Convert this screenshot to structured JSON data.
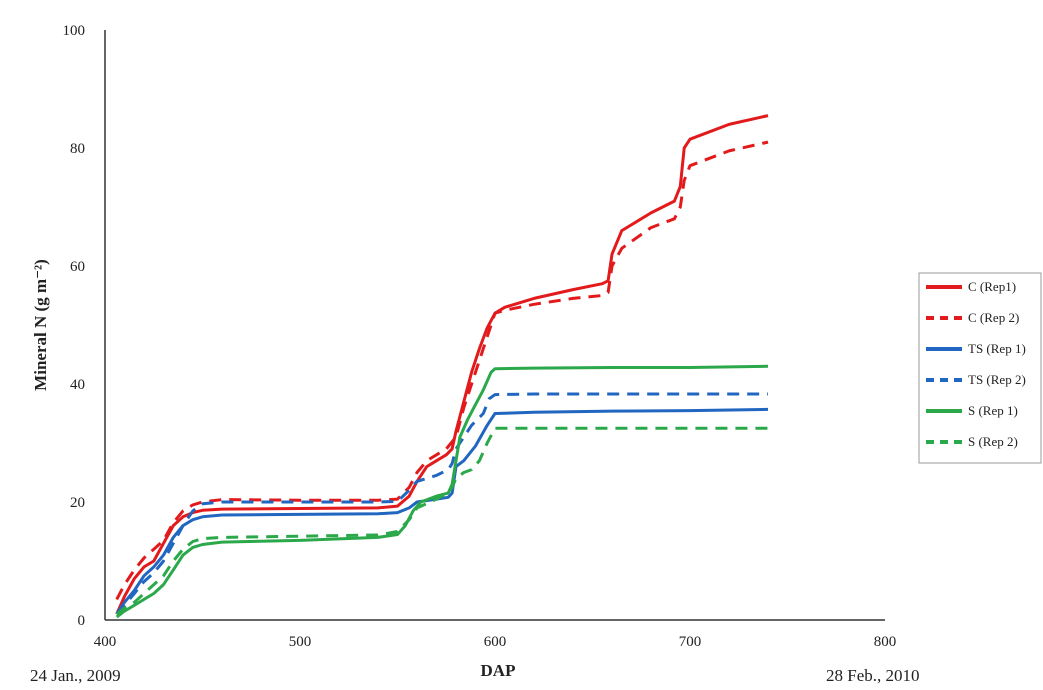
{
  "chart_data": {
    "type": "line",
    "title": "",
    "xlabel": "DAP",
    "ylabel": "Mineral N (g m⁻²)",
    "xlim": [
      400,
      800
    ],
    "ylim": [
      0,
      100
    ],
    "x_ticks": [
      400,
      500,
      600,
      700,
      800
    ],
    "y_ticks": [
      0,
      20,
      40,
      60,
      80,
      100
    ],
    "date_labels": {
      "start": "24 Jan., 2009",
      "end": "28 Feb., 2010"
    },
    "grid": false,
    "legend_position": "right",
    "series": [
      {
        "name": "C (Rep1)",
        "color": "#e31a1c",
        "dash": "solid",
        "points": [
          [
            406,
            1
          ],
          [
            410,
            4
          ],
          [
            415,
            7
          ],
          [
            420,
            9
          ],
          [
            425,
            10
          ],
          [
            430,
            13
          ],
          [
            435,
            16
          ],
          [
            440,
            17.5
          ],
          [
            445,
            18.2
          ],
          [
            450,
            18.6
          ],
          [
            460,
            18.8
          ],
          [
            500,
            18.9
          ],
          [
            540,
            19
          ],
          [
            550,
            19.3
          ],
          [
            556,
            21
          ],
          [
            560,
            23.5
          ],
          [
            565,
            26
          ],
          [
            570,
            27
          ],
          [
            575,
            28
          ],
          [
            578,
            29
          ],
          [
            580,
            32
          ],
          [
            584,
            37
          ],
          [
            588,
            42
          ],
          [
            592,
            46
          ],
          [
            596,
            49.5
          ],
          [
            600,
            52
          ],
          [
            605,
            53
          ],
          [
            620,
            54.5
          ],
          [
            640,
            56
          ],
          [
            655,
            57
          ],
          [
            658,
            57.5
          ],
          [
            660,
            62
          ],
          [
            665,
            66
          ],
          [
            680,
            69
          ],
          [
            692,
            71
          ],
          [
            695,
            73.5
          ],
          [
            697,
            80
          ],
          [
            700,
            81.5
          ],
          [
            720,
            84
          ],
          [
            740,
            85.5
          ]
        ]
      },
      {
        "name": "C (Rep 2)",
        "color": "#e31a1c",
        "dash": "dashed",
        "points": [
          [
            406,
            3.5
          ],
          [
            410,
            6
          ],
          [
            415,
            8.5
          ],
          [
            420,
            10.5
          ],
          [
            425,
            12
          ],
          [
            430,
            13.5
          ],
          [
            435,
            16.5
          ],
          [
            440,
            18.5
          ],
          [
            445,
            19.5
          ],
          [
            450,
            20
          ],
          [
            460,
            20.4
          ],
          [
            500,
            20.3
          ],
          [
            540,
            20.3
          ],
          [
            550,
            20.5
          ],
          [
            556,
            22.5
          ],
          [
            560,
            25
          ],
          [
            565,
            27
          ],
          [
            570,
            28
          ],
          [
            575,
            29
          ],
          [
            580,
            31
          ],
          [
            584,
            36
          ],
          [
            588,
            40
          ],
          [
            592,
            44
          ],
          [
            596,
            48
          ],
          [
            600,
            52
          ],
          [
            605,
            52.5
          ],
          [
            620,
            53.5
          ],
          [
            640,
            54.5
          ],
          [
            655,
            55
          ],
          [
            658,
            55.5
          ],
          [
            660,
            60
          ],
          [
            665,
            63
          ],
          [
            680,
            66.5
          ],
          [
            692,
            68
          ],
          [
            695,
            70
          ],
          [
            697,
            74.5
          ],
          [
            700,
            77
          ],
          [
            720,
            79.5
          ],
          [
            740,
            81
          ]
        ]
      },
      {
        "name": "TS (Rep 1)",
        "color": "#2166c0",
        "dash": "solid",
        "points": [
          [
            406,
            1
          ],
          [
            410,
            3
          ],
          [
            415,
            5
          ],
          [
            420,
            7.5
          ],
          [
            425,
            9
          ],
          [
            430,
            11
          ],
          [
            435,
            14
          ],
          [
            440,
            16
          ],
          [
            445,
            17
          ],
          [
            450,
            17.5
          ],
          [
            460,
            17.8
          ],
          [
            500,
            17.9
          ],
          [
            540,
            18
          ],
          [
            550,
            18.2
          ],
          [
            556,
            19
          ],
          [
            560,
            20
          ],
          [
            570,
            20.5
          ],
          [
            576,
            20.8
          ],
          [
            578,
            21.5
          ],
          [
            580,
            26
          ],
          [
            584,
            27
          ],
          [
            590,
            29.5
          ],
          [
            596,
            33
          ],
          [
            600,
            35
          ],
          [
            620,
            35.2
          ],
          [
            660,
            35.4
          ],
          [
            700,
            35.5
          ],
          [
            740,
            35.7
          ]
        ]
      },
      {
        "name": "TS (Rep 2)",
        "color": "#2166c0",
        "dash": "dashed",
        "points": [
          [
            406,
            1
          ],
          [
            410,
            2.5
          ],
          [
            415,
            4.5
          ],
          [
            420,
            6.5
          ],
          [
            425,
            8
          ],
          [
            430,
            10
          ],
          [
            435,
            13
          ],
          [
            440,
            16
          ],
          [
            445,
            18.5
          ],
          [
            450,
            19.7
          ],
          [
            460,
            20
          ],
          [
            500,
            20
          ],
          [
            540,
            20
          ],
          [
            550,
            20.1
          ],
          [
            556,
            22
          ],
          [
            560,
            23.5
          ],
          [
            570,
            24.5
          ],
          [
            576,
            25.5
          ],
          [
            578,
            26.5
          ],
          [
            580,
            29
          ],
          [
            584,
            31
          ],
          [
            588,
            33
          ],
          [
            594,
            35
          ],
          [
            597,
            37.5
          ],
          [
            600,
            38.2
          ],
          [
            620,
            38.3
          ],
          [
            660,
            38.3
          ],
          [
            700,
            38.3
          ],
          [
            740,
            38.3
          ]
        ]
      },
      {
        "name": "S (Rep 1)",
        "color": "#2aa84a",
        "dash": "solid",
        "points": [
          [
            406,
            0.5
          ],
          [
            410,
            1.5
          ],
          [
            415,
            2.5
          ],
          [
            420,
            3.5
          ],
          [
            425,
            4.5
          ],
          [
            430,
            6
          ],
          [
            435,
            8.5
          ],
          [
            440,
            11
          ],
          [
            445,
            12.3
          ],
          [
            450,
            12.8
          ],
          [
            460,
            13.2
          ],
          [
            500,
            13.5
          ],
          [
            540,
            14
          ],
          [
            550,
            14.5
          ],
          [
            554,
            16
          ],
          [
            558,
            18.5
          ],
          [
            562,
            20
          ],
          [
            570,
            21
          ],
          [
            576,
            21.5
          ],
          [
            578,
            23
          ],
          [
            580,
            27
          ],
          [
            582,
            31
          ],
          [
            586,
            34
          ],
          [
            590,
            36.5
          ],
          [
            594,
            39
          ],
          [
            598,
            42
          ],
          [
            600,
            42.6
          ],
          [
            620,
            42.7
          ],
          [
            660,
            42.8
          ],
          [
            700,
            42.8
          ],
          [
            740,
            43
          ]
        ]
      },
      {
        "name": "S (Rep 2)",
        "color": "#2aa84a",
        "dash": "dashed",
        "points": [
          [
            406,
            1
          ],
          [
            410,
            2
          ],
          [
            415,
            3
          ],
          [
            420,
            4.5
          ],
          [
            425,
            6
          ],
          [
            430,
            7.5
          ],
          [
            435,
            10
          ],
          [
            440,
            12
          ],
          [
            445,
            13.3
          ],
          [
            450,
            13.8
          ],
          [
            460,
            14
          ],
          [
            500,
            14.2
          ],
          [
            540,
            14.4
          ],
          [
            550,
            15
          ],
          [
            556,
            17
          ],
          [
            560,
            19
          ],
          [
            570,
            20.5
          ],
          [
            576,
            21.5
          ],
          [
            578,
            22.5
          ],
          [
            580,
            24
          ],
          [
            584,
            25
          ],
          [
            588,
            25.5
          ],
          [
            592,
            27
          ],
          [
            596,
            30
          ],
          [
            600,
            32.5
          ],
          [
            620,
            32.5
          ],
          [
            660,
            32.5
          ],
          [
            700,
            32.5
          ],
          [
            740,
            32.5
          ]
        ]
      }
    ]
  }
}
